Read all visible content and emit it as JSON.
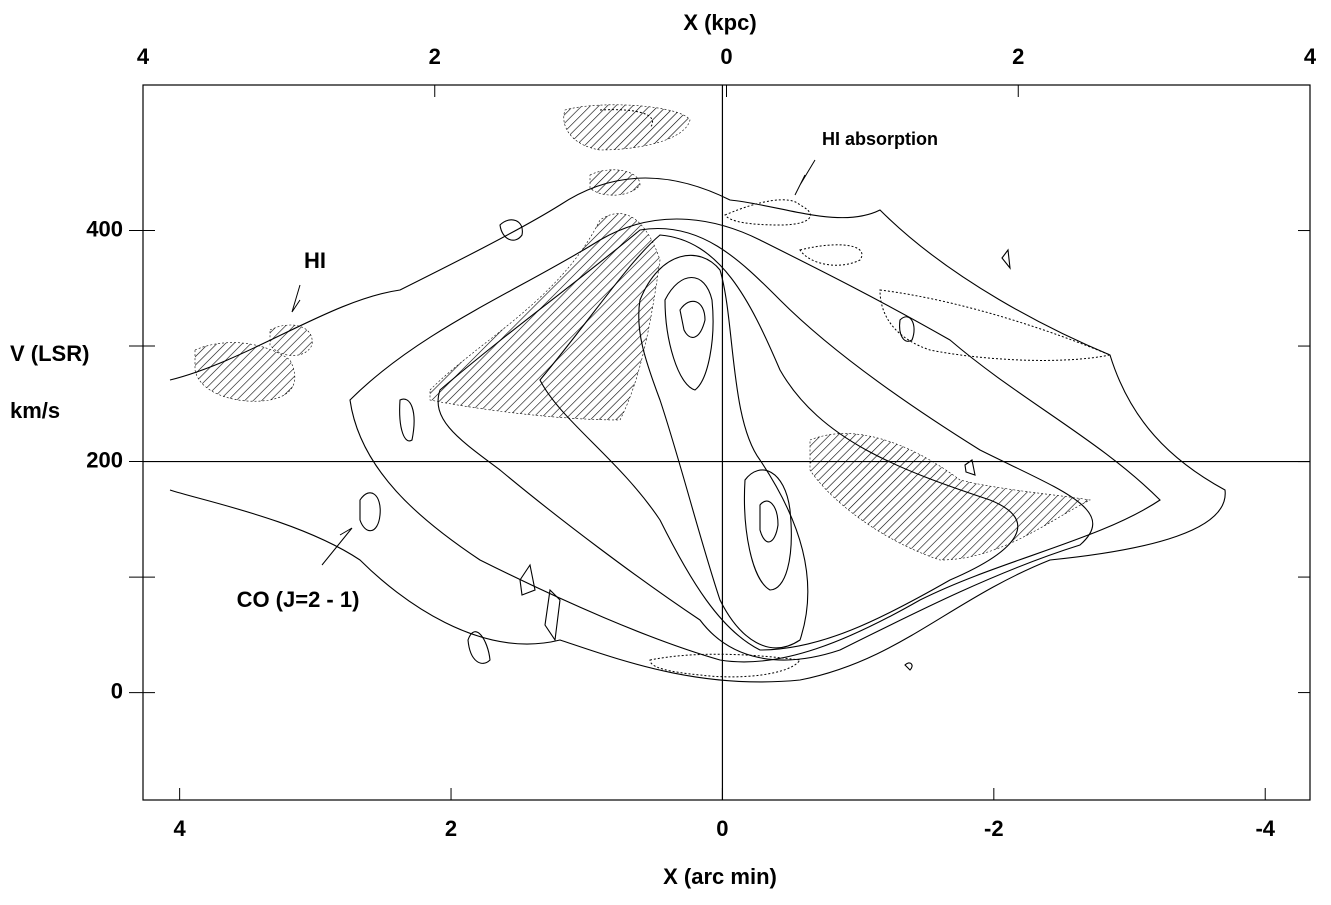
{
  "chart_data": {
    "type": "contour",
    "x_label": "X (arc min)",
    "x2_label": "X (kpc)",
    "y_label": "V (LSR)",
    "y_unit": "km/s",
    "xlim": [
      4.27,
      -4.33
    ],
    "xticks": [
      4,
      2,
      0,
      {
        "value": -2,
        "label": "-2"
      },
      {
        "value": -4,
        "label": "-4"
      }
    ],
    "x2lim": [
      4,
      -4
    ],
    "x2ticks": [
      4,
      2,
      0,
      {
        "value": -2,
        "label": "2"
      },
      {
        "value": -4,
        "label": "4"
      }
    ],
    "ylim": [
      -93,
      526
    ],
    "yticks": [
      0,
      200,
      400
    ],
    "yminorticks": [
      100,
      300
    ],
    "hline": 200,
    "vline": 0,
    "annotations": [
      "HI absorption",
      "HI",
      "CO (J=2 - 1)"
    ]
  }
}
